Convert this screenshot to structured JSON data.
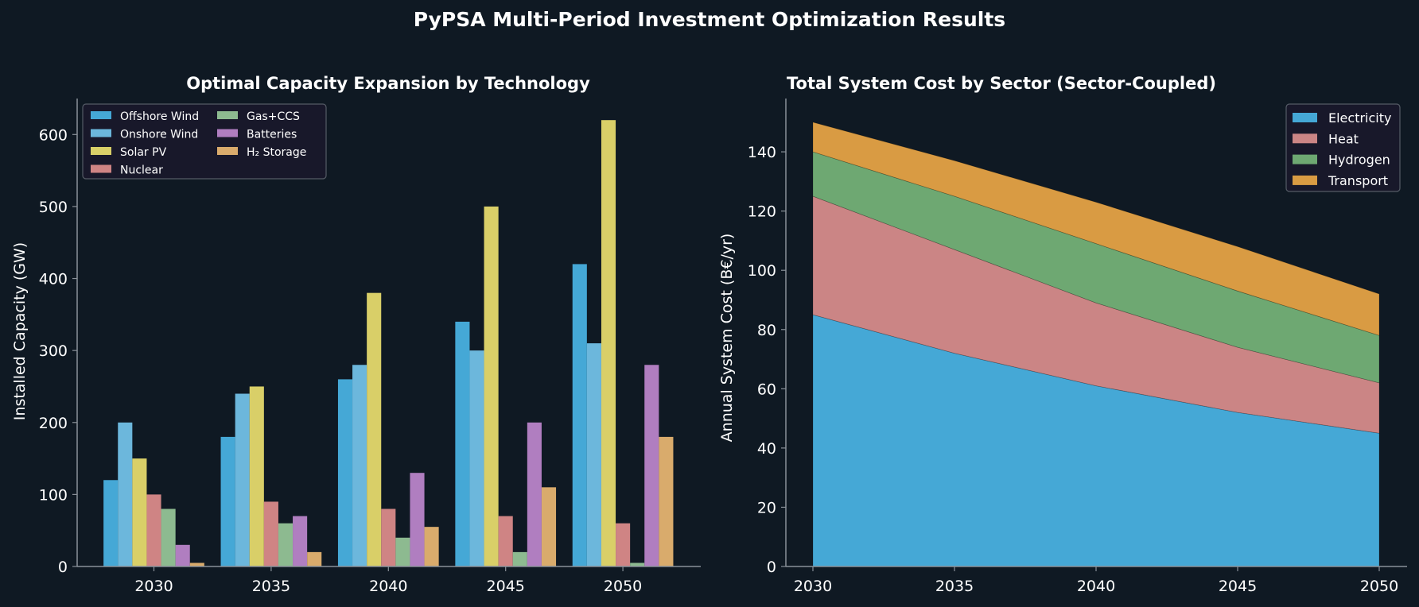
{
  "suptitle": "PyPSA Multi-Period Investment Optimization Results",
  "colors": {
    "background": "#0f1923",
    "axis": "#8a9199",
    "text": "#ffffff",
    "legend_bg": "#18182a"
  },
  "chart_data": [
    {
      "type": "bar",
      "title": "Optimal Capacity Expansion by Technology",
      "xlabel": "",
      "ylabel": "Installed Capacity (GW)",
      "categories": [
        "2030",
        "2035",
        "2040",
        "2045",
        "2050"
      ],
      "ylim": [
        0,
        650
      ],
      "yticks": [
        0,
        100,
        200,
        300,
        400,
        500,
        600
      ],
      "legend_position": "top-left",
      "series": [
        {
          "name": "Offshore Wind",
          "color": "#45a8d6",
          "values": [
            120,
            180,
            260,
            340,
            420
          ]
        },
        {
          "name": "Onshore Wind",
          "color": "#6cb7dc",
          "values": [
            200,
            240,
            280,
            300,
            310
          ]
        },
        {
          "name": "Solar PV",
          "color": "#d9cf68",
          "values": [
            150,
            250,
            380,
            500,
            620
          ]
        },
        {
          "name": "Nuclear",
          "color": "#cf8484",
          "values": [
            100,
            90,
            80,
            70,
            60
          ]
        },
        {
          "name": "Gas+CCS",
          "color": "#8dba90",
          "values": [
            80,
            60,
            40,
            20,
            5
          ]
        },
        {
          "name": "Batteries",
          "color": "#b07ec0",
          "values": [
            30,
            70,
            130,
            200,
            280
          ]
        },
        {
          "name": "H₂ Storage",
          "color": "#d9ab6c",
          "values": [
            5,
            20,
            55,
            110,
            180
          ]
        }
      ]
    },
    {
      "type": "area",
      "stacked": true,
      "title": "Total System Cost by Sector (Sector-Coupled)",
      "xlabel": "",
      "ylabel": "Annual System Cost (B€/yr)",
      "x": [
        2030,
        2035,
        2040,
        2045,
        2050
      ],
      "xticks": [
        "2030",
        "2035",
        "2040",
        "2045",
        "2050"
      ],
      "ylim": [
        0,
        158
      ],
      "yticks": [
        0,
        20,
        40,
        60,
        80,
        100,
        120,
        140
      ],
      "legend_position": "top-right",
      "series": [
        {
          "name": "Electricity",
          "color": "#45a8d6",
          "values": [
            85,
            72,
            61,
            52,
            45
          ]
        },
        {
          "name": "Heat",
          "color": "#cb8585",
          "values": [
            40,
            35,
            28,
            22,
            17
          ]
        },
        {
          "name": "Hydrogen",
          "color": "#6ea872",
          "values": [
            15,
            18,
            20,
            19,
            16
          ]
        },
        {
          "name": "Transport",
          "color": "#d99b43",
          "values": [
            10,
            12,
            14,
            15,
            14
          ]
        }
      ]
    }
  ]
}
